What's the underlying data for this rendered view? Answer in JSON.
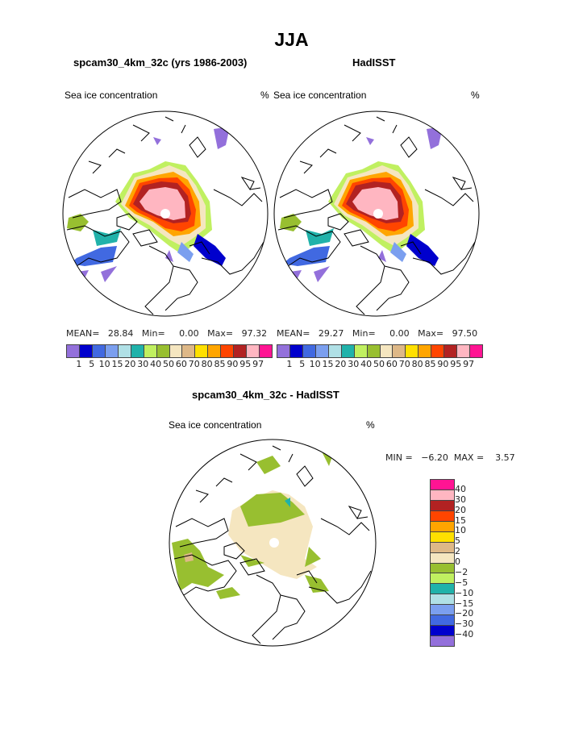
{
  "title": "JJA",
  "panels": [
    {
      "name": "model",
      "subtitle": "spcam30_4km_32c (yrs 1986-2003)",
      "left_label": "Sea ice concentration",
      "right_label": "%",
      "stats": {
        "mean_label": "MEAN=",
        "mean": "28.84",
        "min_label": "Min=",
        "min": "0.00",
        "max_label": "Max=",
        "max": "97.32"
      }
    },
    {
      "name": "obs",
      "subtitle": "HadISST",
      "left_label": "Sea ice concentration",
      "right_label": "%",
      "stats": {
        "mean_label": "MEAN=",
        "mean": "29.27",
        "min_label": "Min=",
        "min": "0.00",
        "max_label": "Max=",
        "max": "97.50"
      }
    }
  ],
  "colorbar": {
    "levels": [
      "1",
      "5",
      "10",
      "15",
      "20",
      "30",
      "40",
      "50",
      "60",
      "70",
      "80",
      "85",
      "90",
      "95",
      "97"
    ],
    "colors": [
      "#9370DB",
      "#0000CD",
      "#4169E1",
      "#7B9FEF",
      "#B0E0E6",
      "#20B2AA",
      "#C0F060",
      "#98BF30",
      "#F5E6C0",
      "#DEB887",
      "#FFE000",
      "#FFA500",
      "#FF4500",
      "#B22222",
      "#FFB6C1",
      "#FF1493"
    ]
  },
  "difference": {
    "subtitle": "spcam30_4km_32c - HadISST",
    "left_label": "Sea ice concentration",
    "right_label": "%",
    "min_label": "MIN =",
    "min": "−6.20",
    "max_label": "MAX =",
    "max": "3.57",
    "levels_top_to_bottom": [
      "40",
      "30",
      "20",
      "15",
      "10",
      "5",
      "2",
      "0",
      "−2",
      "−5",
      "−10",
      "−15",
      "−20",
      "−30",
      "−40"
    ],
    "colors_top_to_bottom": [
      "#FF1493",
      "#FFB6C1",
      "#B22222",
      "#FF4500",
      "#FFA500",
      "#FFE000",
      "#DEB887",
      "#F5E6C0",
      "#98BF30",
      "#C0F060",
      "#20B2AA",
      "#B0E0E6",
      "#7B9FEF",
      "#4169E1",
      "#0000CD",
      "#9370DB"
    ]
  }
}
